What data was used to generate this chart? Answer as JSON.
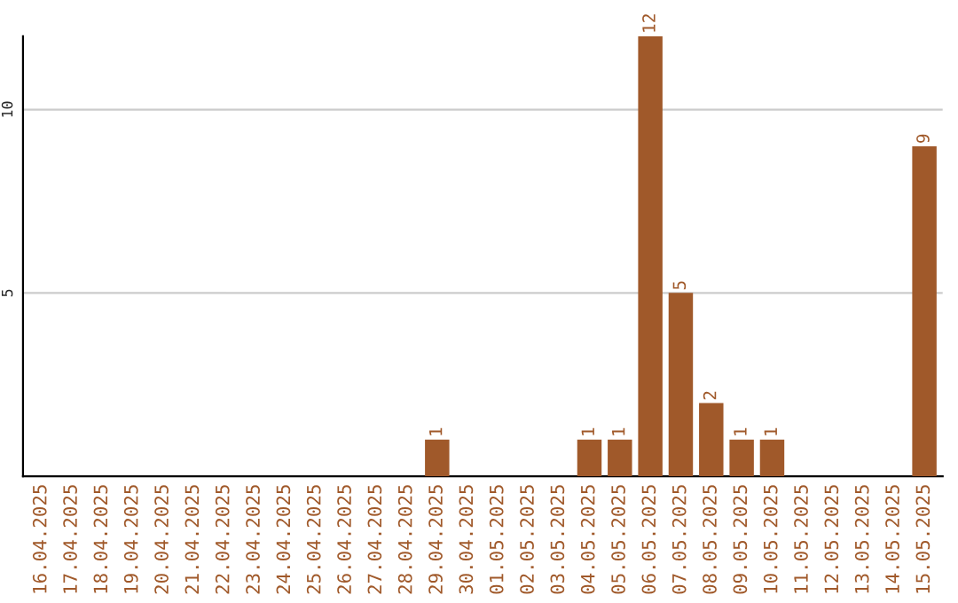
{
  "chart_data": {
    "type": "bar",
    "categories": [
      "16.04.2025",
      "17.04.2025",
      "18.04.2025",
      "19.04.2025",
      "20.04.2025",
      "21.04.2025",
      "22.04.2025",
      "23.04.2025",
      "24.04.2025",
      "25.04.2025",
      "26.04.2025",
      "27.04.2025",
      "28.04.2025",
      "29.04.2025",
      "30.04.2025",
      "01.05.2025",
      "02.05.2025",
      "03.05.2025",
      "04.05.2025",
      "05.05.2025",
      "06.05.2025",
      "07.05.2025",
      "08.05.2025",
      "09.05.2025",
      "10.05.2025",
      "11.05.2025",
      "12.05.2025",
      "13.05.2025",
      "14.05.2025",
      "15.05.2025"
    ],
    "values": [
      0,
      0,
      0,
      0,
      0,
      0,
      0,
      0,
      0,
      0,
      0,
      0,
      0,
      1,
      0,
      0,
      0,
      0,
      1,
      1,
      12,
      5,
      2,
      1,
      1,
      0,
      0,
      0,
      0,
      9
    ],
    "value_labels": [
      null,
      null,
      null,
      null,
      null,
      null,
      null,
      null,
      null,
      null,
      null,
      null,
      null,
      "1",
      null,
      null,
      null,
      null,
      "1",
      "1",
      "12",
      "5",
      "2",
      "1",
      "1",
      null,
      null,
      null,
      null,
      "9"
    ],
    "color": "#a0592a",
    "ylim": [
      0,
      12
    ],
    "yticks": [
      5,
      10
    ],
    "grid": "y",
    "legend": false
  }
}
